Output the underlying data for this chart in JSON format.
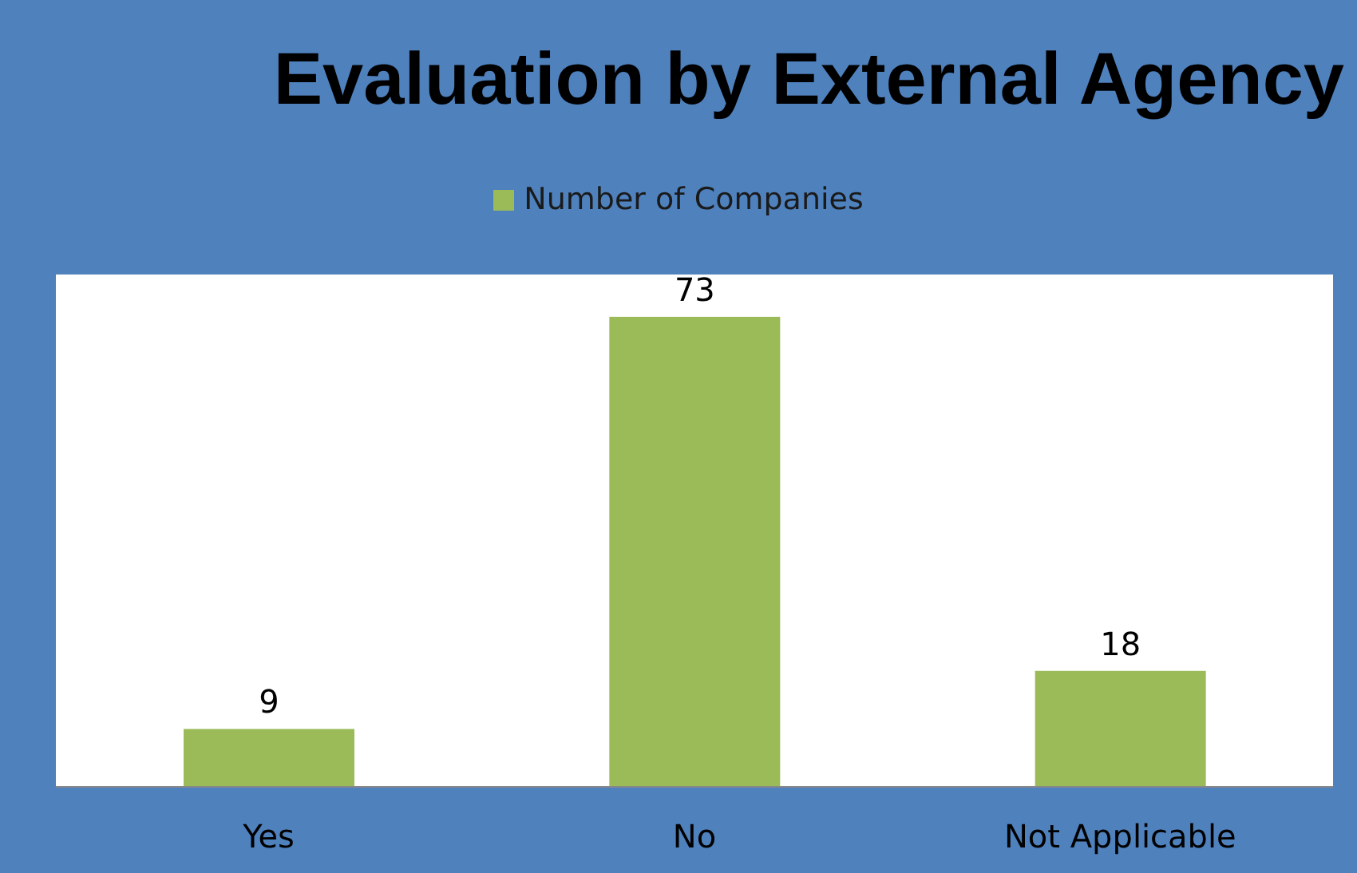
{
  "chart_data": {
    "type": "bar",
    "title": "Evaluation by External Agency",
    "categories": [
      "Yes",
      "No",
      "Not Applicable"
    ],
    "series": [
      {
        "name": "Number of Companies",
        "color": "#9bbb59",
        "values": [
          9,
          73,
          18
        ]
      }
    ],
    "data_labels": true,
    "legend": "top",
    "grid": false
  }
}
